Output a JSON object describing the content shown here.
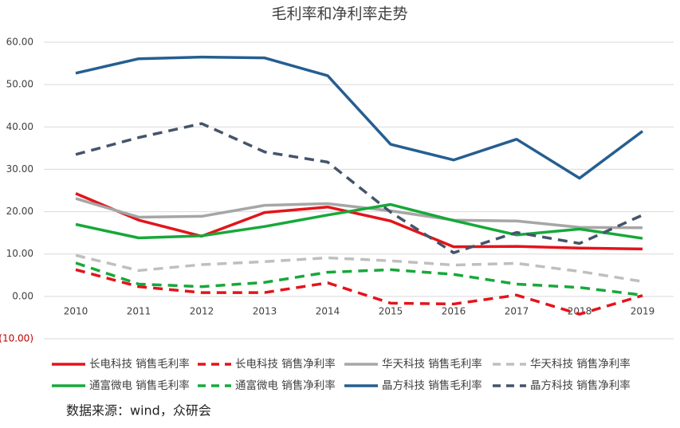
{
  "chart_data": {
    "type": "line",
    "title": "毛利率和净利率走势",
    "categories": [
      "2010",
      "2011",
      "2012",
      "2013",
      "2014",
      "2015",
      "2016",
      "2017",
      "2018",
      "2019"
    ],
    "ylim": [
      -10,
      60
    ],
    "yticks": [
      {
        "value": -10,
        "label": "(10.00)",
        "color": "#c00000"
      },
      {
        "value": 0,
        "label": "0.00"
      },
      {
        "value": 10,
        "label": "10.00"
      },
      {
        "value": 20,
        "label": "20.00"
      },
      {
        "value": 30,
        "label": "30.00"
      },
      {
        "value": 40,
        "label": "40.00"
      },
      {
        "value": 50,
        "label": "50.00"
      },
      {
        "value": 60,
        "label": "60.00"
      }
    ],
    "grid": true,
    "series": [
      {
        "name": "长电科技 销售毛利率",
        "color": "#e3141b",
        "dashed": false,
        "values": [
          24.3,
          18.0,
          14.2,
          19.8,
          21.1,
          17.8,
          11.7,
          11.8,
          11.4,
          11.2
        ]
      },
      {
        "name": "长电科技 销售净利率",
        "color": "#e3141b",
        "dashed": true,
        "values": [
          6.3,
          2.3,
          0.9,
          0.9,
          3.2,
          -1.6,
          -1.8,
          0.3,
          -4.2,
          0.2
        ]
      },
      {
        "name": "华天科技 销售毛利率",
        "color": "#a6a6a6",
        "dashed": false,
        "values": [
          23.1,
          18.7,
          18.9,
          21.5,
          21.9,
          20.2,
          18.0,
          17.8,
          16.3,
          16.2
        ]
      },
      {
        "name": "华天科技 销售净利率",
        "color": "#bfbfbf",
        "dashed": true,
        "values": [
          9.7,
          6.1,
          7.5,
          8.2,
          9.1,
          8.4,
          7.4,
          7.8,
          5.9,
          3.5
        ]
      },
      {
        "name": "通富微电 销售毛利率",
        "color": "#17a83a",
        "dashed": false,
        "values": [
          17.0,
          13.8,
          14.3,
          16.5,
          19.2,
          21.7,
          17.9,
          14.5,
          15.9,
          13.7
        ]
      },
      {
        "name": "通富微电 销售净利率",
        "color": "#17a83a",
        "dashed": true,
        "values": [
          7.9,
          2.9,
          2.3,
          3.3,
          5.7,
          6.3,
          5.2,
          2.9,
          2.1,
          0.3
        ]
      },
      {
        "name": "晶方科技 销售毛利率",
        "color": "#255e91",
        "dashed": false,
        "values": [
          52.7,
          56.1,
          56.5,
          56.3,
          52.1,
          35.9,
          32.2,
          37.1,
          27.9,
          39.0
        ]
      },
      {
        "name": "晶方科技 销售净利率",
        "color": "#44546a",
        "dashed": true,
        "values": [
          33.5,
          37.5,
          40.8,
          34.1,
          31.7,
          19.9,
          10.3,
          15.1,
          12.5,
          19.2
        ]
      }
    ],
    "source": "数据来源：wind，众研会"
  }
}
